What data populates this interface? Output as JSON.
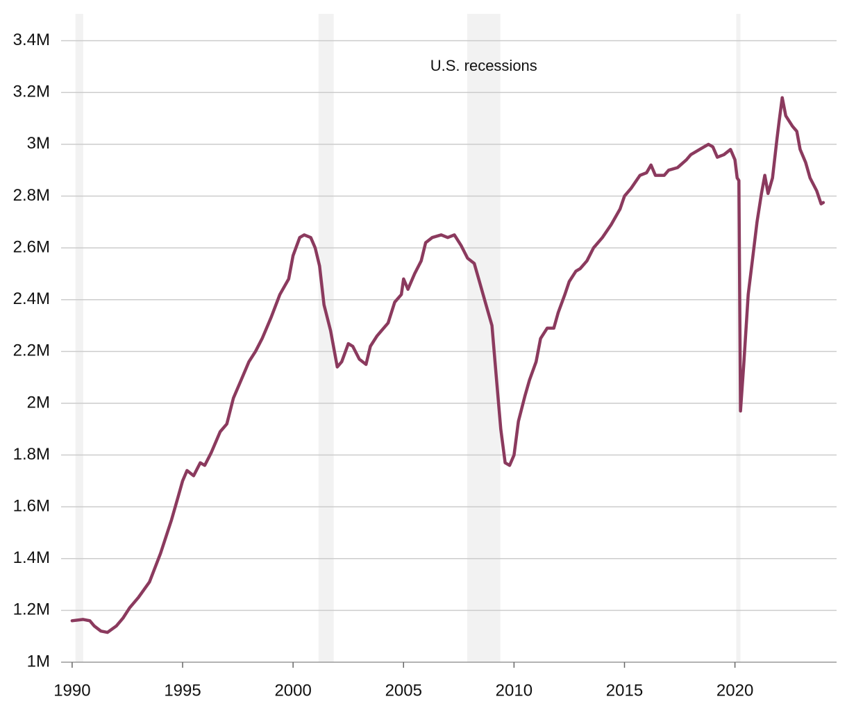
{
  "chart_data": {
    "type": "line",
    "annotations": [
      "U.S. recessions"
    ],
    "recessions": [
      [
        1990.15,
        1990.5
      ],
      [
        2001.15,
        2001.84
      ],
      [
        2007.88,
        2009.38
      ],
      [
        2020.06,
        2020.25
      ]
    ],
    "recession_color": "#f2f2f2",
    "x": [
      1990.0,
      1990.5,
      1990.8,
      1991.0,
      1991.3,
      1991.6,
      1992.0,
      1992.3,
      1992.6,
      1993.0,
      1993.5,
      1994.0,
      1994.5,
      1994.8,
      1995.0,
      1995.2,
      1995.5,
      1995.8,
      1996.0,
      1996.3,
      1996.7,
      1997.0,
      1997.3,
      1997.6,
      1998.0,
      1998.3,
      1998.6,
      1999.0,
      1999.4,
      1999.8,
      2000.0,
      2000.3,
      2000.5,
      2000.8,
      2001.0,
      2001.2,
      2001.4,
      2001.7,
      2002.0,
      2002.2,
      2002.5,
      2002.7,
      2003.0,
      2003.3,
      2003.5,
      2003.8,
      2004.0,
      2004.3,
      2004.6,
      2004.9,
      2005.0,
      2005.2,
      2005.5,
      2005.8,
      2006.0,
      2006.3,
      2006.7,
      2007.0,
      2007.3,
      2007.6,
      2007.9,
      2008.2,
      2008.4,
      2008.7,
      2009.0,
      2009.2,
      2009.4,
      2009.6,
      2009.8,
      2010.0,
      2010.2,
      2010.5,
      2010.7,
      2011.0,
      2011.2,
      2011.5,
      2011.8,
      2012.0,
      2012.3,
      2012.5,
      2012.8,
      2013.0,
      2013.3,
      2013.6,
      2014.0,
      2014.4,
      2014.8,
      2015.0,
      2015.3,
      2015.7,
      2016.0,
      2016.2,
      2016.4,
      2016.8,
      2017.0,
      2017.4,
      2017.8,
      2018.0,
      2018.4,
      2018.8,
      2019.0,
      2019.2,
      2019.5,
      2019.8,
      2020.0,
      2020.1,
      2020.18,
      2020.25,
      2020.4,
      2020.6,
      2020.8,
      2021.0,
      2021.2,
      2021.35,
      2021.5,
      2021.7,
      2021.9,
      2022.0,
      2022.14,
      2022.3,
      2022.6,
      2022.8,
      2022.95,
      2023.2,
      2023.4,
      2023.7,
      2023.9,
      2024.0
    ],
    "series": [
      {
        "color": "#8b3a5e",
        "values": [
          1160000,
          1165000,
          1160000,
          1140000,
          1120000,
          1115000,
          1140000,
          1170000,
          1210000,
          1250000,
          1310000,
          1420000,
          1550000,
          1640000,
          1700000,
          1740000,
          1720000,
          1770000,
          1760000,
          1810000,
          1890000,
          1920000,
          2020000,
          2080000,
          2160000,
          2200000,
          2250000,
          2330000,
          2420000,
          2480000,
          2570000,
          2640000,
          2650000,
          2640000,
          2600000,
          2530000,
          2380000,
          2280000,
          2140000,
          2160000,
          2230000,
          2220000,
          2170000,
          2150000,
          2220000,
          2260000,
          2280000,
          2310000,
          2390000,
          2420000,
          2480000,
          2440000,
          2500000,
          2550000,
          2620000,
          2640000,
          2650000,
          2640000,
          2650000,
          2610000,
          2560000,
          2540000,
          2480000,
          2390000,
          2300000,
          2100000,
          1900000,
          1770000,
          1760000,
          1800000,
          1930000,
          2030000,
          2090000,
          2160000,
          2250000,
          2290000,
          2290000,
          2350000,
          2420000,
          2470000,
          2510000,
          2520000,
          2550000,
          2600000,
          2640000,
          2690000,
          2750000,
          2800000,
          2830000,
          2880000,
          2890000,
          2920000,
          2880000,
          2880000,
          2900000,
          2910000,
          2940000,
          2960000,
          2980000,
          3000000,
          2990000,
          2950000,
          2960000,
          2980000,
          2940000,
          2870000,
          2860000,
          1970000,
          2150000,
          2420000,
          2560000,
          2700000,
          2810000,
          2880000,
          2810000,
          2870000,
          3020000,
          3090000,
          3180000,
          3110000,
          3070000,
          3050000,
          2980000,
          2930000,
          2870000,
          2820000,
          2770000,
          2775000
        ]
      }
    ],
    "xlim": [
      1989.5,
      2024.6
    ],
    "xticks": [
      1990,
      1995,
      2000,
      2005,
      2010,
      2015,
      2020
    ],
    "ylim": [
      1000000,
      3450000
    ],
    "yticks": [
      {
        "value": 1000000,
        "label": "1M"
      },
      {
        "value": 1200000,
        "label": "1.2M"
      },
      {
        "value": 1400000,
        "label": "1.4M"
      },
      {
        "value": 1600000,
        "label": "1.6M"
      },
      {
        "value": 1800000,
        "label": "1.8M"
      },
      {
        "value": 2000000,
        "label": "2M"
      },
      {
        "value": 2200000,
        "label": "2.2M"
      },
      {
        "value": 2400000,
        "label": "2.4M"
      },
      {
        "value": 2600000,
        "label": "2.6M"
      },
      {
        "value": 2800000,
        "label": "2.8M"
      },
      {
        "value": 3000000,
        "label": "3M"
      },
      {
        "value": 3200000,
        "label": "3.2M"
      },
      {
        "value": 3400000,
        "label": "3.4M"
      }
    ],
    "grid": true
  }
}
